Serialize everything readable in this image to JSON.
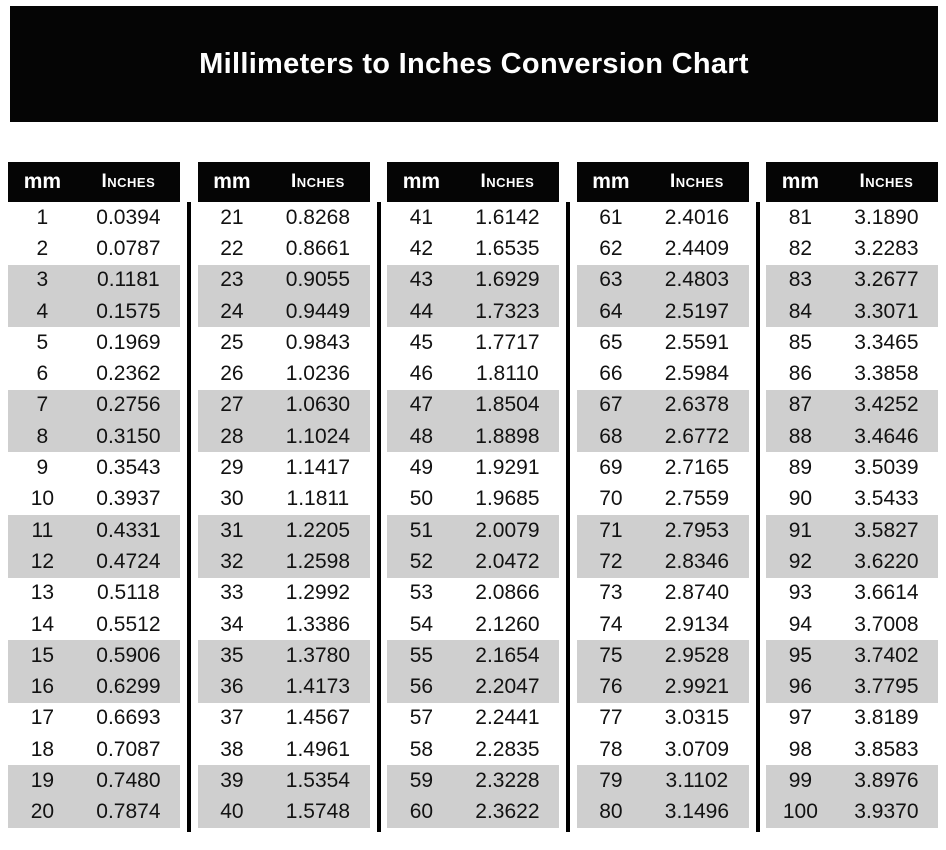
{
  "title": "Millimeters to Inches Conversion Chart",
  "colors": {
    "banner_bg": "#050505",
    "header_bg": "#050505",
    "header_text": "#ffffff",
    "row_alt_bg": "#cfcfcf",
    "row_bg": "#ffffff",
    "text": "#121212",
    "divider": "#000000"
  },
  "chart_data": {
    "type": "table",
    "title": "Millimeters to Inches Conversion Chart",
    "column_headers": [
      "mm",
      "Inches"
    ],
    "row_banding": "two white rows alternating with two gray rows",
    "groups": [
      {
        "rows": [
          [
            1,
            "0.0394"
          ],
          [
            2,
            "0.0787"
          ],
          [
            3,
            "0.1181"
          ],
          [
            4,
            "0.1575"
          ],
          [
            5,
            "0.1969"
          ],
          [
            6,
            "0.2362"
          ],
          [
            7,
            "0.2756"
          ],
          [
            8,
            "0.3150"
          ],
          [
            9,
            "0.3543"
          ],
          [
            10,
            "0.3937"
          ],
          [
            11,
            "0.4331"
          ],
          [
            12,
            "0.4724"
          ],
          [
            13,
            "0.5118"
          ],
          [
            14,
            "0.5512"
          ],
          [
            15,
            "0.5906"
          ],
          [
            16,
            "0.6299"
          ],
          [
            17,
            "0.6693"
          ],
          [
            18,
            "0.7087"
          ],
          [
            19,
            "0.7480"
          ],
          [
            20,
            "0.7874"
          ]
        ]
      },
      {
        "rows": [
          [
            21,
            "0.8268"
          ],
          [
            22,
            "0.8661"
          ],
          [
            23,
            "0.9055"
          ],
          [
            24,
            "0.9449"
          ],
          [
            25,
            "0.9843"
          ],
          [
            26,
            "1.0236"
          ],
          [
            27,
            "1.0630"
          ],
          [
            28,
            "1.1024"
          ],
          [
            29,
            "1.1417"
          ],
          [
            30,
            "1.1811"
          ],
          [
            31,
            "1.2205"
          ],
          [
            32,
            "1.2598"
          ],
          [
            33,
            "1.2992"
          ],
          [
            34,
            "1.3386"
          ],
          [
            35,
            "1.3780"
          ],
          [
            36,
            "1.4173"
          ],
          [
            37,
            "1.4567"
          ],
          [
            38,
            "1.4961"
          ],
          [
            39,
            "1.5354"
          ],
          [
            40,
            "1.5748"
          ]
        ]
      },
      {
        "rows": [
          [
            41,
            "1.6142"
          ],
          [
            42,
            "1.6535"
          ],
          [
            43,
            "1.6929"
          ],
          [
            44,
            "1.7323"
          ],
          [
            45,
            "1.7717"
          ],
          [
            46,
            "1.8110"
          ],
          [
            47,
            "1.8504"
          ],
          [
            48,
            "1.8898"
          ],
          [
            49,
            "1.9291"
          ],
          [
            50,
            "1.9685"
          ],
          [
            51,
            "2.0079"
          ],
          [
            52,
            "2.0472"
          ],
          [
            53,
            "2.0866"
          ],
          [
            54,
            "2.1260"
          ],
          [
            55,
            "2.1654"
          ],
          [
            56,
            "2.2047"
          ],
          [
            57,
            "2.2441"
          ],
          [
            58,
            "2.2835"
          ],
          [
            59,
            "2.3228"
          ],
          [
            60,
            "2.3622"
          ]
        ]
      },
      {
        "rows": [
          [
            61,
            "2.4016"
          ],
          [
            62,
            "2.4409"
          ],
          [
            63,
            "2.4803"
          ],
          [
            64,
            "2.5197"
          ],
          [
            65,
            "2.5591"
          ],
          [
            66,
            "2.5984"
          ],
          [
            67,
            "2.6378"
          ],
          [
            68,
            "2.6772"
          ],
          [
            69,
            "2.7165"
          ],
          [
            70,
            "2.7559"
          ],
          [
            71,
            "2.7953"
          ],
          [
            72,
            "2.8346"
          ],
          [
            73,
            "2.8740"
          ],
          [
            74,
            "2.9134"
          ],
          [
            75,
            "2.9528"
          ],
          [
            76,
            "2.9921"
          ],
          [
            77,
            "3.0315"
          ],
          [
            78,
            "3.0709"
          ],
          [
            79,
            "3.1102"
          ],
          [
            80,
            "3.1496"
          ]
        ]
      },
      {
        "rows": [
          [
            81,
            "3.1890"
          ],
          [
            82,
            "3.2283"
          ],
          [
            83,
            "3.2677"
          ],
          [
            84,
            "3.3071"
          ],
          [
            85,
            "3.3465"
          ],
          [
            86,
            "3.3858"
          ],
          [
            87,
            "3.4252"
          ],
          [
            88,
            "3.4646"
          ],
          [
            89,
            "3.5039"
          ],
          [
            90,
            "3.5433"
          ],
          [
            91,
            "3.5827"
          ],
          [
            92,
            "3.6220"
          ],
          [
            93,
            "3.6614"
          ],
          [
            94,
            "3.7008"
          ],
          [
            95,
            "3.7402"
          ],
          [
            96,
            "3.7795"
          ],
          [
            97,
            "3.8189"
          ],
          [
            98,
            "3.8583"
          ],
          [
            99,
            "3.8976"
          ],
          [
            100,
            "3.9370"
          ]
        ]
      }
    ]
  }
}
